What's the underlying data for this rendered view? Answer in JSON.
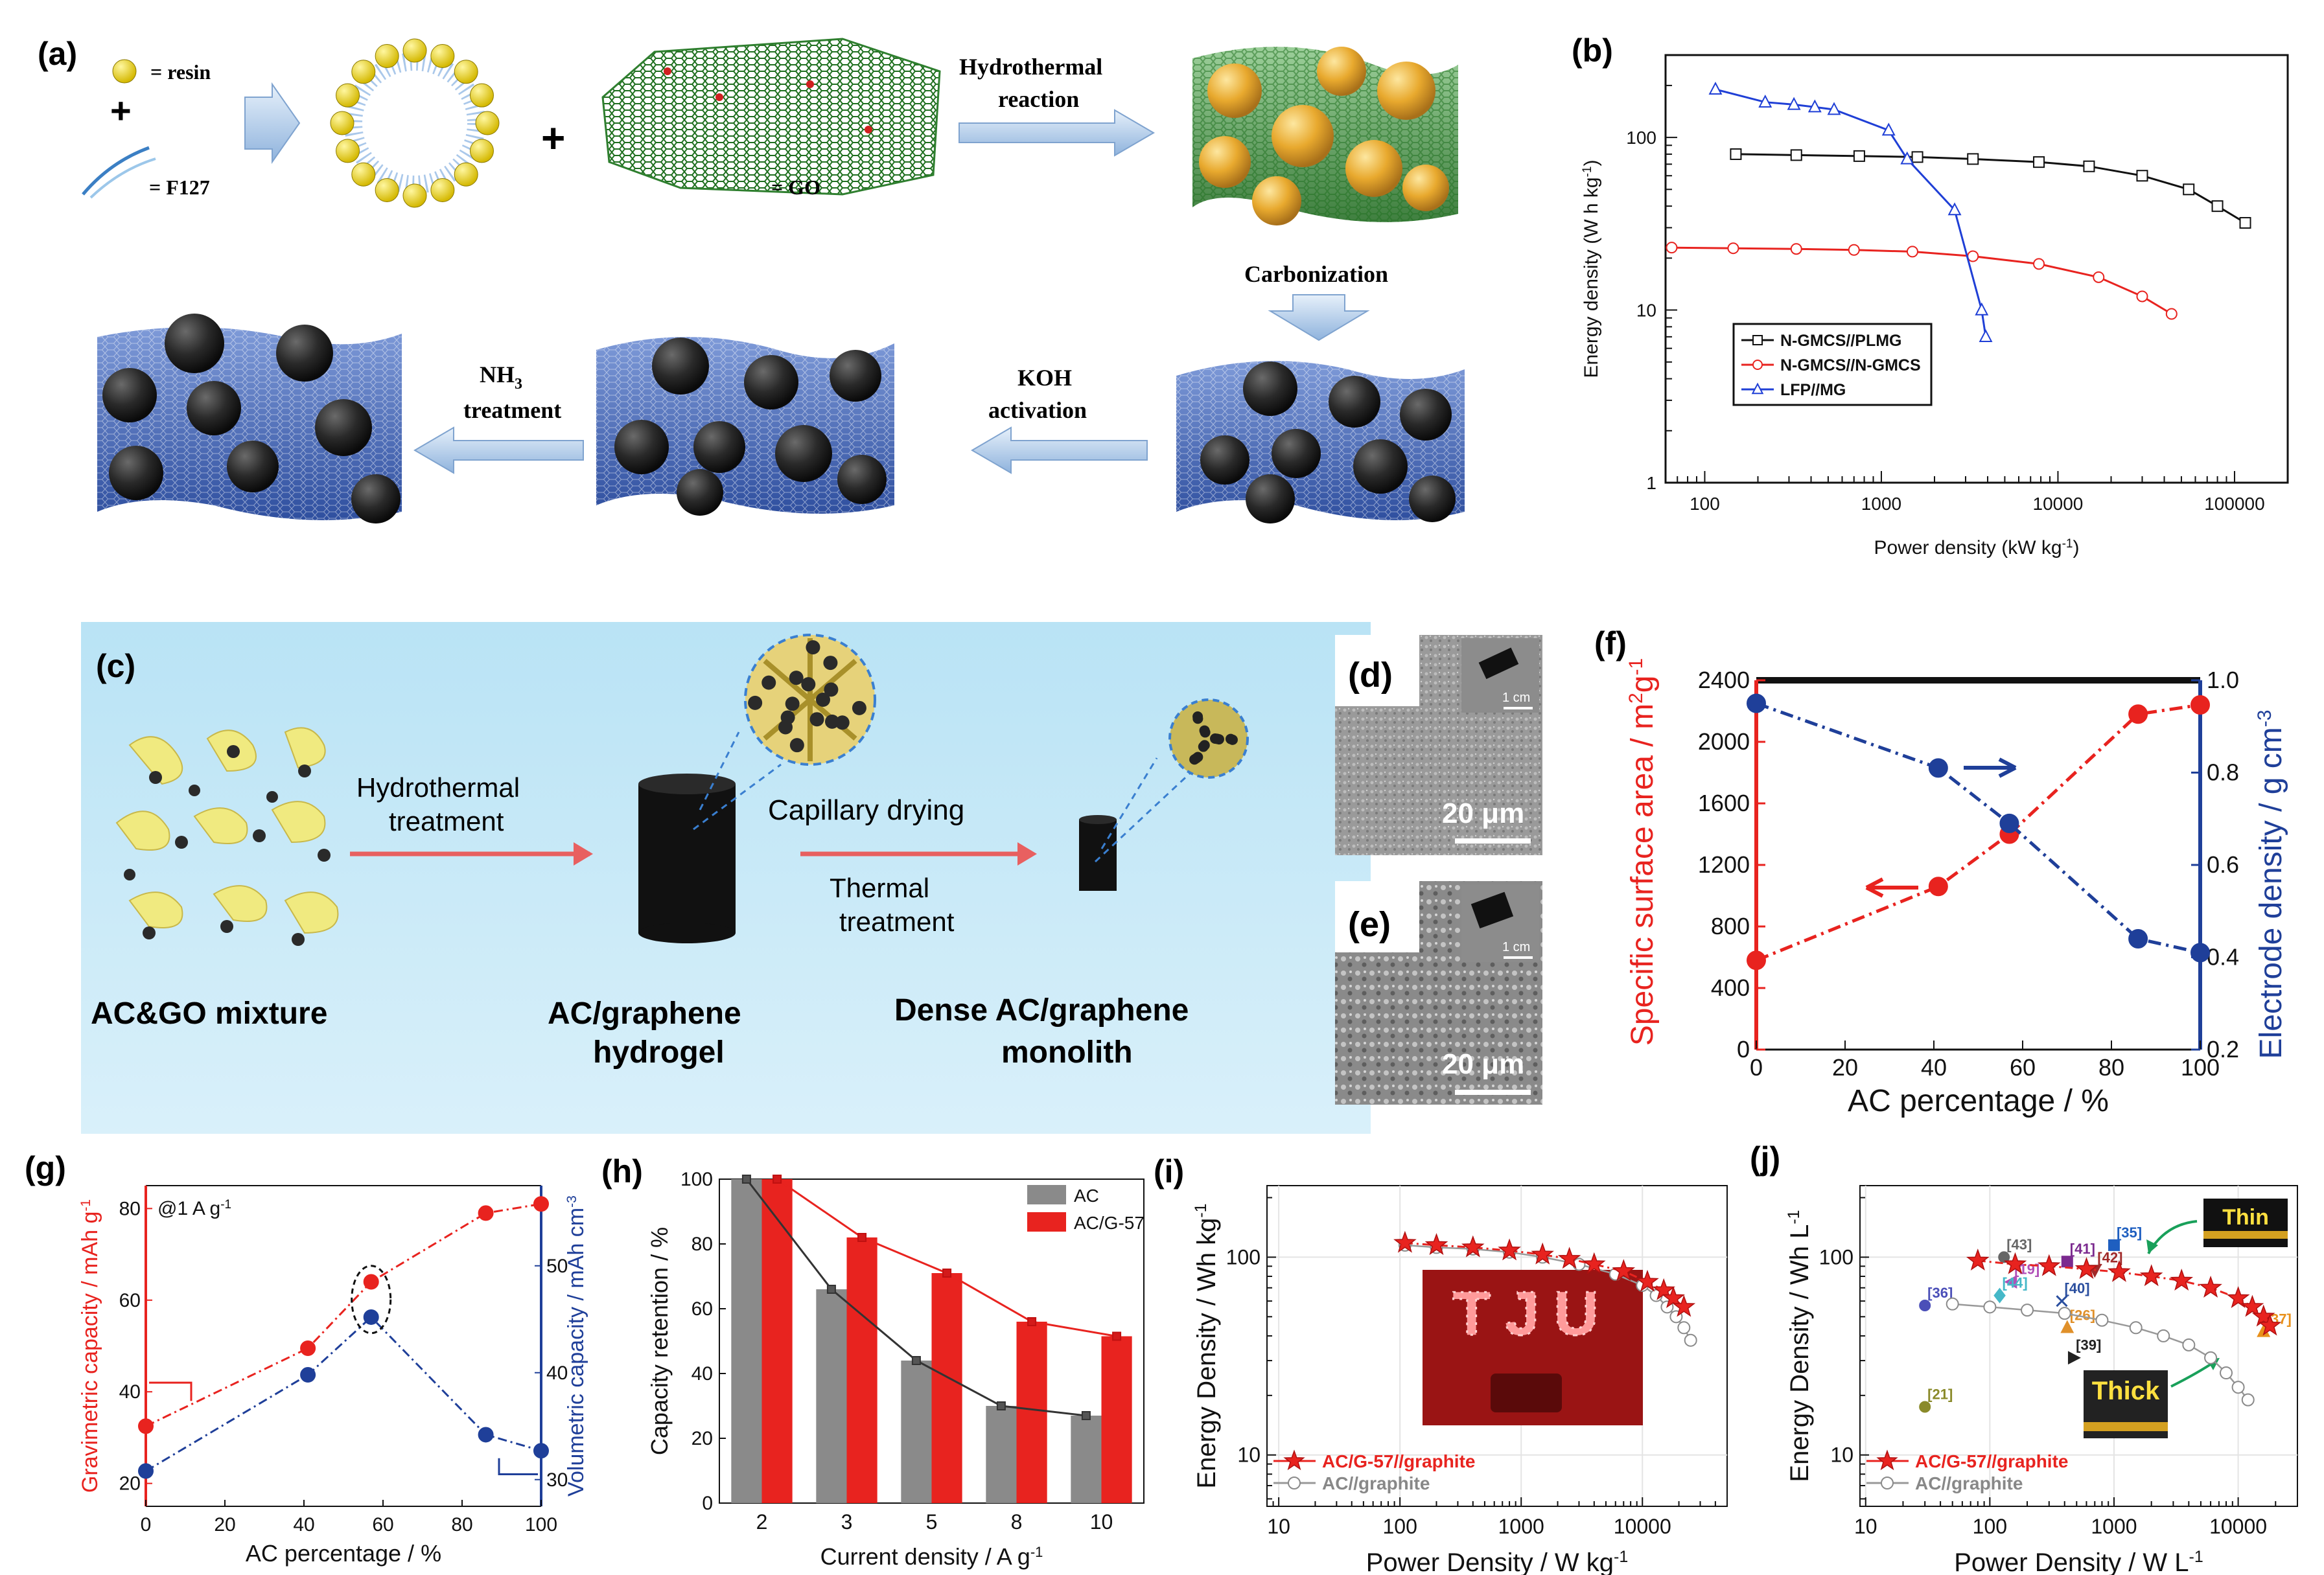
{
  "panel_labels": {
    "a": "(a)",
    "b": "(b)",
    "c": "(c)",
    "d": "(d)",
    "e": "(e)",
    "f": "(f)",
    "g": "(g)",
    "h": "(h)",
    "i": "(i)",
    "j": "(j)"
  },
  "schematic_a": {
    "resin_legend": "= resin",
    "f127_legend": "= F127",
    "go_label": "= GO",
    "plus": "+",
    "hydrothermal_line1": "Hydrothermal",
    "hydrothermal_line2": "reaction",
    "carbonization": "Carbonization",
    "koh_line1": "KOH",
    "koh_line2": "activation",
    "nh3_line1": "NH",
    "nh3_sub": "3",
    "nh3_line2": "treatment"
  },
  "schematic_c": {
    "hydrothermal_line1": "Hydrothermal",
    "hydrothermal_line2": "treatment",
    "capillary": "Capillary drying",
    "thermal_line1": "Thermal",
    "thermal_line2": "treatment",
    "mixture": "AC&GO mixture",
    "hydrogel_line1": "AC/graphene",
    "hydrogel_line2": "hydrogel",
    "monolith_line1": "Dense AC/graphene",
    "monolith_line2": "monolith"
  },
  "sem": {
    "d_scale": "20 μm",
    "e_scale": "20 μm",
    "d_inset_scale": "1 cm",
    "e_inset_scale": "1 cm"
  },
  "colors": {
    "red": "#e8231f",
    "blue": "#1f3f99",
    "black": "#222222",
    "gray": "#8a8a8a"
  },
  "chart_data": [
    {
      "panel": "b",
      "type": "line",
      "xlabel": "Power density (kW kg",
      "xlabel_sup": "-1",
      "xlabel_end": ")",
      "ylabel": "Energy density (W h kg",
      "ylabel_sup": "-1",
      "ylabel_end": ")",
      "xscale": "log",
      "yscale": "log",
      "xlim": [
        60,
        200000
      ],
      "ylim": [
        1,
        300
      ],
      "xticks": [
        100,
        1000,
        10000,
        100000
      ],
      "xtick_labels": [
        "100",
        "1000",
        "10000",
        "100000"
      ],
      "yticks": [
        1,
        10,
        100
      ],
      "ytick_labels": [
        "1",
        "10",
        "100"
      ],
      "legend": "bottom-left",
      "series": [
        {
          "name": "N-GMCS//PLMG",
          "marker": "square",
          "color": "#111111",
          "x": [
            150,
            330,
            750,
            1600,
            3300,
            7800,
            15000,
            30000,
            55000,
            80000,
            115000
          ],
          "y": [
            80,
            79,
            78,
            77,
            75,
            72,
            68,
            60,
            50,
            40,
            32
          ]
        },
        {
          "name": "N-GMCS//N-GMCS",
          "marker": "circle",
          "color": "#e8231f",
          "x": [
            65,
            145,
            330,
            700,
            1500,
            3300,
            7800,
            17000,
            30000,
            44000
          ],
          "y": [
            23,
            22.8,
            22.6,
            22.3,
            21.8,
            20.5,
            18.5,
            15.5,
            12,
            9.5
          ]
        },
        {
          "name": "LFP//MG",
          "marker": "triangle",
          "color": "#1f3fd6",
          "x": [
            115,
            220,
            320,
            420,
            540,
            1100,
            1400,
            2600,
            3700,
            3900
          ],
          "y": [
            190,
            160,
            155,
            150,
            145,
            110,
            75,
            38,
            10,
            7
          ]
        }
      ]
    },
    {
      "panel": "f",
      "type": "line",
      "xlabel": "AC percentage / %",
      "ylabel_left": "Specific surface area / m",
      "ylabel_left_sup": "2",
      "ylabel_left_end": "g",
      "ylabel_left_sup2": "-1",
      "ylabel_right": "Electrode density / g cm",
      "ylabel_right_sup": "-3",
      "xlim": [
        0,
        100
      ],
      "ylim_left": [
        0,
        2400
      ],
      "ylim_right": [
        0.2,
        1.0
      ],
      "xticks": [
        0,
        20,
        40,
        60,
        80,
        100
      ],
      "yticks_left": [
        0,
        400,
        800,
        1200,
        1600,
        2000,
        2400
      ],
      "yticks_right": [
        "0.2",
        "0.4",
        "0.6",
        "0.8",
        "1.0"
      ],
      "series": [
        {
          "name": "Specific surface area",
          "axis": "left",
          "color": "#e8231f",
          "x": [
            0,
            41,
            57,
            86,
            100
          ],
          "y": [
            580,
            1060,
            1400,
            2180,
            2240
          ]
        },
        {
          "name": "Electrode density",
          "axis": "right",
          "color": "#1f3f99",
          "x": [
            0,
            41,
            57,
            86,
            100
          ],
          "y": [
            0.95,
            0.81,
            0.69,
            0.44,
            0.41
          ]
        }
      ]
    },
    {
      "panel": "g",
      "type": "line",
      "xlabel": "AC percentage / %",
      "ylabel_left": "Gravimetric capacity / mAh g",
      "ylabel_left_sup": "-1",
      "ylabel_right": "Volumetric capacity / mAh cm",
      "ylabel_right_sup": "-3",
      "annotation": "@1 A g",
      "annotation_sup": "-1",
      "xlim": [
        0,
        100
      ],
      "ylim_left": [
        15,
        85
      ],
      "ylim_right": [
        27.5,
        57.5
      ],
      "xticks": [
        0,
        20,
        40,
        60,
        80,
        100
      ],
      "yticks_left": [
        20,
        40,
        60,
        80
      ],
      "yticks_right": [
        30,
        40,
        50
      ],
      "series": [
        {
          "name": "Gravimetric capacity",
          "axis": "left",
          "color": "#e8231f",
          "x": [
            0,
            41,
            57,
            86,
            100
          ],
          "y": [
            32.5,
            49.5,
            64,
            79,
            81
          ]
        },
        {
          "name": "Volumetric capacity",
          "axis": "right",
          "color": "#1f3f99",
          "x": [
            0,
            41,
            57,
            86,
            100
          ],
          "y": [
            30.8,
            39.8,
            45.2,
            34.2,
            32.7
          ]
        }
      ]
    },
    {
      "panel": "h",
      "type": "bar",
      "xlabel": "Current density / A g",
      "xlabel_sup": "-1",
      "ylabel": "Capacity retention / %",
      "categories": [
        "2",
        "3",
        "5",
        "8",
        "10"
      ],
      "ylim": [
        0,
        100
      ],
      "yticks": [
        0,
        20,
        40,
        60,
        80,
        100
      ],
      "legend": "top-right",
      "series": [
        {
          "name": "AC",
          "color": "#8a8a8a",
          "values": [
            100,
            66,
            44,
            30,
            27
          ]
        },
        {
          "name": "AC/G-57",
          "color": "#e8231f",
          "values": [
            100,
            82,
            71,
            56,
            51.5
          ]
        }
      ]
    },
    {
      "panel": "i",
      "type": "line",
      "xlabel": "Power Density / W kg",
      "xlabel_sup": "-1",
      "ylabel": "Energy Density / Wh kg",
      "ylabel_sup": "-1",
      "xscale": "log",
      "yscale": "log",
      "xlim": [
        8,
        50000
      ],
      "ylim": [
        5.5,
        230
      ],
      "xticks": [
        10,
        100,
        1000,
        10000
      ],
      "xtick_labels": [
        "10",
        "100",
        "1000",
        "10000"
      ],
      "yticks": [
        10,
        100
      ],
      "ytick_labels": [
        "10",
        "100"
      ],
      "legend": "bottom-left",
      "inset_text": "TJU",
      "series": [
        {
          "name": "AC/G-57//graphite",
          "marker": "star",
          "color": "#e8231f",
          "x": [
            110,
            200,
            400,
            800,
            1500,
            2500,
            4000,
            7000,
            11000,
            15000,
            18000,
            22000
          ],
          "y": [
            118,
            115,
            112,
            108,
            103,
            98,
            92,
            85,
            75,
            68,
            62,
            56
          ]
        },
        {
          "name": "AC//graphite",
          "marker": "circle",
          "color": "#999999",
          "x": [
            110,
            200,
            400,
            800,
            1500,
            3000,
            6000,
            10000,
            13000,
            16000,
            19000,
            22000,
            25000
          ],
          "y": [
            115,
            112,
            110,
            106,
            100,
            92,
            82,
            72,
            64,
            56,
            50,
            44,
            38
          ]
        }
      ]
    },
    {
      "panel": "j",
      "type": "line",
      "xlabel": "Power Density / W L",
      "xlabel_sup": "-1",
      "ylabel": "Energy Density / Wh L",
      "ylabel_sup": "-1",
      "xscale": "log",
      "yscale": "log",
      "xlim": [
        9,
        30000
      ],
      "ylim": [
        5.5,
        230
      ],
      "xticks": [
        10,
        100,
        1000,
        10000
      ],
      "xtick_labels": [
        "10",
        "100",
        "1000",
        "10000"
      ],
      "yticks": [
        10,
        100
      ],
      "ytick_labels": [
        "10",
        "100"
      ],
      "legend": "bottom-left",
      "inset_thin": "Thin",
      "inset_thick": "Thick",
      "series": [
        {
          "name": "AC/G-57//graphite",
          "marker": "star",
          "color": "#e8231f",
          "x": [
            80,
            160,
            300,
            600,
            1100,
            2000,
            3500,
            6000,
            10000,
            13000,
            16000,
            18000
          ],
          "y": [
            96,
            92,
            90,
            87,
            84,
            80,
            76,
            70,
            62,
            56,
            50,
            45
          ]
        },
        {
          "name": "AC//graphite",
          "marker": "circle",
          "color": "#999999",
          "x": [
            50,
            100,
            200,
            400,
            800,
            1500,
            2500,
            4000,
            6000,
            8000,
            10000,
            12000
          ],
          "y": [
            58,
            56,
            54,
            52,
            48,
            44,
            40,
            36,
            31,
            26,
            22,
            19
          ]
        }
      ],
      "references": [
        {
          "label": "[43]",
          "x": 130,
          "y": 100,
          "color": "#666666",
          "marker": "circle"
        },
        {
          "label": "[41]",
          "x": 420,
          "y": 95,
          "color": "#7b2a8f",
          "marker": "square"
        },
        {
          "label": "[35]",
          "x": 1000,
          "y": 115,
          "color": "#1f5fc0",
          "marker": "square"
        },
        {
          "label": "[42]",
          "x": 700,
          "y": 86,
          "color": "#a02a2a",
          "marker": "tri-down"
        },
        {
          "label": "[19]",
          "x": 150,
          "y": 75,
          "color": "#b04fb8",
          "marker": "tri-left"
        },
        {
          "label": "[36]",
          "x": 30,
          "y": 57,
          "color": "#4b4fb8",
          "marker": "circle"
        },
        {
          "label": "[40]",
          "x": 380,
          "y": 60,
          "color": "#2b4f9f",
          "marker": "cross"
        },
        {
          "label": "[44]",
          "x": 120,
          "y": 64,
          "color": "#45b8c8",
          "marker": "diamond"
        },
        {
          "label": "[26]",
          "x": 420,
          "y": 44,
          "color": "#e0902a",
          "marker": "tri-up"
        },
        {
          "label": "[39]",
          "x": 470,
          "y": 31,
          "color": "#222222",
          "marker": "tri-right"
        },
        {
          "label": "[21]",
          "x": 30,
          "y": 17.5,
          "color": "#8a8a2a",
          "marker": "circle"
        },
        {
          "label": "[37]",
          "x": 16000,
          "y": 42,
          "color": "#e8901a",
          "marker": "tri-up"
        }
      ]
    }
  ]
}
